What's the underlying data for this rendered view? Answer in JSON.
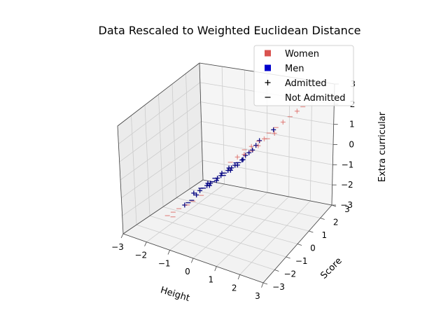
{
  "chart_data": {
    "type": "scatter",
    "projection": "3d",
    "title": "Data Rescaled to Weighted Euclidean Distance",
    "xlabel": "Height",
    "ylabel": "Score",
    "zlabel": "Extra curricular",
    "xlim": [
      -3,
      3
    ],
    "ylim": [
      -3,
      3
    ],
    "zlim": [
      -3,
      3
    ],
    "xticks": [
      "−3",
      "−2",
      "−1",
      "0",
      "1",
      "2",
      "3"
    ],
    "yticks": [
      "−3",
      "−2",
      "−1",
      "0",
      "1",
      "2",
      "3"
    ],
    "zticks": [
      "−3",
      "−2",
      "−1",
      "0",
      "1",
      "2",
      "3"
    ],
    "grid": true,
    "legend": {
      "placement": "top-right",
      "entries": [
        {
          "label": "Women",
          "marker": "square",
          "color": "#d9534f"
        },
        {
          "label": "Men",
          "marker": "square",
          "color": "#0000cc"
        },
        {
          "label": "Admitted",
          "marker": "plus",
          "color": "#000000"
        },
        {
          "label": "Not Admitted",
          "marker": "minus",
          "color": "#000000"
        }
      ]
    },
    "series": [
      {
        "name": "Men",
        "color": "#000080",
        "points": [
          {
            "x": -0.9,
            "y": -1.0,
            "z": -1.2,
            "admitted": true
          },
          {
            "x": -0.8,
            "y": -0.9,
            "z": -1.0,
            "admitted": true
          },
          {
            "x": -0.7,
            "y": -0.8,
            "z": -0.9,
            "admitted": false
          },
          {
            "x": -0.6,
            "y": -0.7,
            "z": -0.8,
            "admitted": true
          },
          {
            "x": -0.5,
            "y": -0.6,
            "z": -0.7,
            "admitted": true
          },
          {
            "x": -0.4,
            "y": -0.6,
            "z": -0.6,
            "admitted": false
          },
          {
            "x": -0.3,
            "y": -0.4,
            "z": -0.5,
            "admitted": true
          },
          {
            "x": -0.2,
            "y": -0.3,
            "z": -0.4,
            "admitted": true
          },
          {
            "x": -0.1,
            "y": -0.2,
            "z": -0.3,
            "admitted": false
          },
          {
            "x": 0.0,
            "y": -0.1,
            "z": -0.2,
            "admitted": true
          },
          {
            "x": 0.1,
            "y": 0.0,
            "z": -0.1,
            "admitted": true
          },
          {
            "x": 0.2,
            "y": 0.1,
            "z": 0.0,
            "admitted": true
          },
          {
            "x": 0.3,
            "y": 0.2,
            "z": 0.1,
            "admitted": false
          },
          {
            "x": 0.4,
            "y": 0.3,
            "z": 0.2,
            "admitted": true
          },
          {
            "x": 0.5,
            "y": 0.4,
            "z": 0.4,
            "admitted": true
          },
          {
            "x": 0.6,
            "y": 0.5,
            "z": 0.5,
            "admitted": true
          },
          {
            "x": 0.7,
            "y": 0.6,
            "z": 0.6,
            "admitted": true
          },
          {
            "x": -1.0,
            "y": -1.2,
            "z": -1.4,
            "admitted": false
          },
          {
            "x": -1.1,
            "y": -1.3,
            "z": -1.5,
            "admitted": false
          },
          {
            "x": -1.2,
            "y": -1.4,
            "z": -1.6,
            "admitted": true
          },
          {
            "x": -0.9,
            "y": -1.2,
            "z": -1.0,
            "admitted": true
          },
          {
            "x": -0.7,
            "y": -1.0,
            "z": -0.8,
            "admitted": false
          },
          {
            "x": -0.5,
            "y": -0.8,
            "z": -0.6,
            "admitted": true
          },
          {
            "x": -0.3,
            "y": -0.6,
            "z": -0.4,
            "admitted": false
          },
          {
            "x": -0.1,
            "y": -0.4,
            "z": -0.2,
            "admitted": true
          },
          {
            "x": 0.1,
            "y": -0.2,
            "z": 0.0,
            "admitted": true
          },
          {
            "x": 0.3,
            "y": 0.0,
            "z": 0.2,
            "admitted": false
          },
          {
            "x": 0.5,
            "y": 0.2,
            "z": 0.3,
            "admitted": true
          },
          {
            "x": 0.8,
            "y": 0.7,
            "z": 0.8,
            "admitted": true
          },
          {
            "x": 0.9,
            "y": 0.8,
            "z": 1.0,
            "admitted": true
          },
          {
            "x": 1.3,
            "y": 1.2,
            "z": 1.4,
            "admitted": true
          },
          {
            "x": -0.6,
            "y": -0.5,
            "z": -0.9,
            "admitted": true
          },
          {
            "x": -0.4,
            "y": -0.3,
            "z": -0.7,
            "admitted": true
          },
          {
            "x": -0.2,
            "y": -0.1,
            "z": -0.5,
            "admitted": false
          },
          {
            "x": 0.0,
            "y": 0.1,
            "z": -0.3,
            "admitted": true
          },
          {
            "x": 0.2,
            "y": 0.3,
            "z": -0.1,
            "admitted": true
          }
        ]
      },
      {
        "name": "Women",
        "color": "#d9534f",
        "points": [
          {
            "x": -1.6,
            "y": -1.6,
            "z": -2.0,
            "admitted": false
          },
          {
            "x": -1.8,
            "y": -1.7,
            "z": -2.2,
            "admitted": false
          },
          {
            "x": -1.4,
            "y": -1.5,
            "z": -1.8,
            "admitted": false
          },
          {
            "x": -1.5,
            "y": -1.8,
            "z": -2.1,
            "admitted": false
          },
          {
            "x": -1.2,
            "y": -1.2,
            "z": -1.7,
            "admitted": false
          },
          {
            "x": 0.4,
            "y": 0.5,
            "z": 0.6,
            "admitted": false
          },
          {
            "x": 0.6,
            "y": 0.7,
            "z": 0.7,
            "admitted": true
          },
          {
            "x": 0.8,
            "y": 0.9,
            "z": 0.9,
            "admitted": false
          },
          {
            "x": 1.0,
            "y": 1.0,
            "z": 1.0,
            "admitted": true
          },
          {
            "x": 1.1,
            "y": 1.2,
            "z": 1.2,
            "admitted": false
          },
          {
            "x": 1.3,
            "y": 1.4,
            "z": 1.4,
            "admitted": false
          },
          {
            "x": 1.5,
            "y": 1.6,
            "z": 1.6,
            "admitted": true
          },
          {
            "x": 1.7,
            "y": 1.8,
            "z": 1.8,
            "admitted": false
          },
          {
            "x": 0.2,
            "y": 0.3,
            "z": 0.3,
            "admitted": true
          },
          {
            "x": 0.0,
            "y": 0.1,
            "z": 0.1,
            "admitted": false
          },
          {
            "x": 0.5,
            "y": 0.3,
            "z": 0.5,
            "admitted": true
          },
          {
            "x": 0.7,
            "y": 0.5,
            "z": 0.6,
            "admitted": false
          },
          {
            "x": 0.9,
            "y": 0.7,
            "z": 0.8,
            "admitted": true
          },
          {
            "x": 1.2,
            "y": 0.9,
            "z": 1.1,
            "admitted": false
          },
          {
            "x": -1.0,
            "y": -1.1,
            "z": -1.5,
            "admitted": false
          },
          {
            "x": -0.8,
            "y": -0.8,
            "z": -1.3,
            "admitted": false
          },
          {
            "x": 1.9,
            "y": 2.0,
            "z": 2.0,
            "admitted": true
          },
          {
            "x": 2.1,
            "y": 2.1,
            "z": 2.2,
            "admitted": false
          },
          {
            "x": 1.4,
            "y": 1.1,
            "z": 1.3,
            "admitted": true
          }
        ]
      }
    ]
  }
}
